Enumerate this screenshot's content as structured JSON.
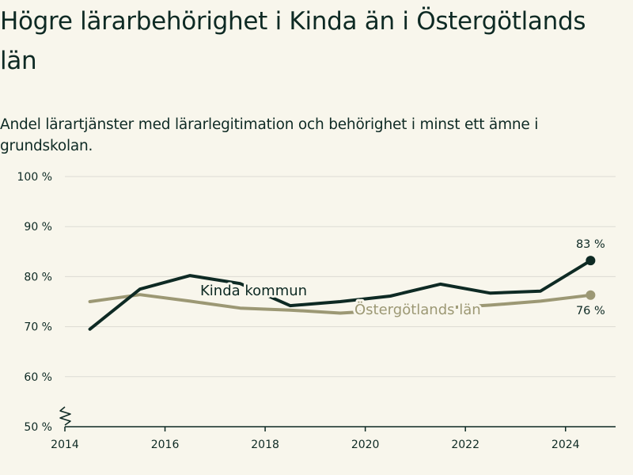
{
  "chart_data": {
    "type": "line",
    "title": "Högre lärarbehörighet i Kinda än i Östergötlands län",
    "subtitle": "Andel lärartjänster med lärarlegitimation och behörighet i minst ett ämne i grundskolan.",
    "xlim": [
      2014,
      2025
    ],
    "ylim": [
      50,
      100
    ],
    "x_ticks": [
      2014,
      2016,
      2018,
      2020,
      2022,
      2024
    ],
    "x_tick_labels": [
      "2014",
      "2016",
      "2018",
      "2020",
      "2022",
      "2024"
    ],
    "y_ticks": [
      50,
      60,
      70,
      80,
      90,
      100
    ],
    "y_tick_labels": [
      "50 %",
      "60 %",
      "70 %",
      "80 %",
      "90 %",
      "100 %"
    ],
    "axis_break": true,
    "grid": true,
    "series": [
      {
        "name": "Kinda kommun",
        "color": "#0e2a24",
        "x": [
          2014.5,
          2015.5,
          2016.5,
          2017.5,
          2018.5,
          2019.5,
          2020.5,
          2021.5,
          2022.5,
          2023.5,
          2024.5
        ],
        "values": [
          69.5,
          77.5,
          80.2,
          78.6,
          74.2,
          75.0,
          76.1,
          78.5,
          76.7,
          77.1,
          83.2
        ],
        "end_label": "83 %"
      },
      {
        "name": "Östergötlands län",
        "color": "#9c9874",
        "x": [
          2014.5,
          2015.5,
          2016.5,
          2017.5,
          2018.5,
          2019.5,
          2020.5,
          2021.5,
          2022.5,
          2023.5,
          2024.5
        ],
        "values": [
          75.0,
          76.4,
          75.1,
          73.7,
          73.3,
          72.7,
          73.3,
          73.7,
          74.3,
          75.1,
          76.3
        ],
        "end_label": "76 %"
      }
    ]
  }
}
